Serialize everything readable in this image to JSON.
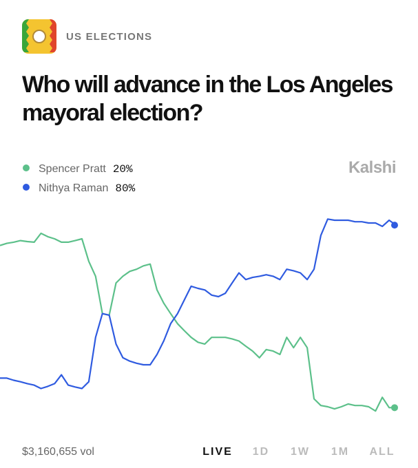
{
  "header": {
    "category": "US ELECTIONS"
  },
  "title": [
    "Who will advance in the Los Angeles",
    "mayoral election?"
  ],
  "brand": "Kalshi",
  "chart_data": {
    "type": "line",
    "ylim": [
      16,
      85
    ],
    "series": [
      {
        "name": "Spencer Pratt",
        "color": "#5cc08a",
        "current": {
          "value": 20,
          "label": "20%"
        },
        "values": [
          73.3,
          74.0,
          74.4,
          74.9,
          74.6,
          74.4,
          77.3,
          76.2,
          75.5,
          74.4,
          74.4,
          74.9,
          75.5,
          68.1,
          63.2,
          50.9,
          50.4,
          61.0,
          63.2,
          64.8,
          65.5,
          66.6,
          67.2,
          58.7,
          54.3,
          50.9,
          47.6,
          45.3,
          43.1,
          41.5,
          40.9,
          43.1,
          43.1,
          43.1,
          42.6,
          41.9,
          40.2,
          38.6,
          36.4,
          39.1,
          38.6,
          37.5,
          43.1,
          39.7,
          43.1,
          39.7,
          22.9,
          20.7,
          20.3,
          19.6,
          20.3,
          21.2,
          20.7,
          20.7,
          20.3,
          18.9,
          23.4,
          20.0,
          20.0
        ]
      },
      {
        "name": "Nithya Raman",
        "color": "#2f5be0",
        "current": {
          "value": 80,
          "label": "80%"
        },
        "values": [
          29.7,
          29.7,
          29.0,
          28.5,
          27.9,
          27.4,
          26.3,
          27.0,
          27.9,
          30.8,
          27.4,
          26.8,
          26.3,
          28.5,
          43.1,
          50.9,
          50.4,
          40.9,
          36.4,
          35.3,
          34.6,
          34.1,
          34.1,
          37.5,
          42.0,
          47.6,
          50.9,
          55.4,
          59.9,
          59.2,
          58.7,
          57.0,
          56.5,
          57.6,
          61.0,
          64.3,
          62.1,
          62.8,
          63.2,
          63.7,
          63.2,
          62.1,
          65.5,
          65.0,
          64.3,
          62.1,
          65.5,
          76.6,
          82.0,
          81.6,
          81.6,
          81.6,
          81.1,
          81.1,
          80.7,
          80.7,
          79.6,
          81.6,
          80.0
        ]
      }
    ]
  },
  "footer": {
    "volume": "$3,160,655 vol",
    "tabs": [
      "LIVE",
      "1D",
      "1W",
      "1M",
      "ALL"
    ],
    "active_tab": 0
  }
}
